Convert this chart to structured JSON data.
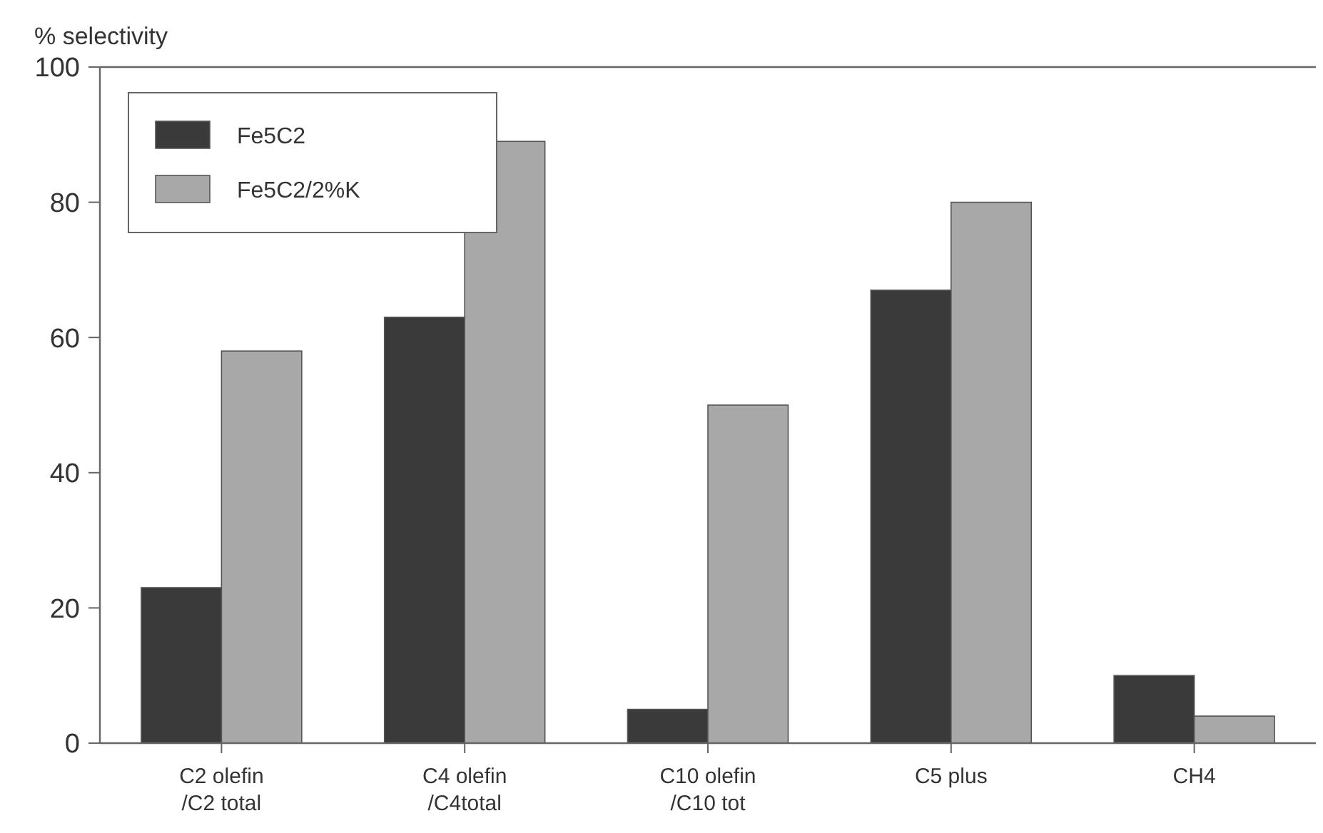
{
  "chart_data": {
    "type": "bar",
    "ylabel": "% selectivity",
    "categories": [
      "C2 olefin\n/C2 total",
      "C4 olefin\n/C4total",
      "C10 olefin\n/C10 tot",
      "C5 plus",
      "CH4"
    ],
    "series": [
      {
        "name": "Fe5C2",
        "color": "#3a3a3a",
        "values": [
          23,
          63,
          5,
          67,
          10
        ]
      },
      {
        "name": "Fe5C2/2%K",
        "color": "#a8a8a8",
        "values": [
          58,
          89,
          50,
          80,
          4
        ]
      }
    ],
    "ylim": [
      0,
      100
    ],
    "yticks": [
      0,
      20,
      40,
      60,
      80,
      100
    ],
    "grid": false,
    "legend": "top left"
  }
}
